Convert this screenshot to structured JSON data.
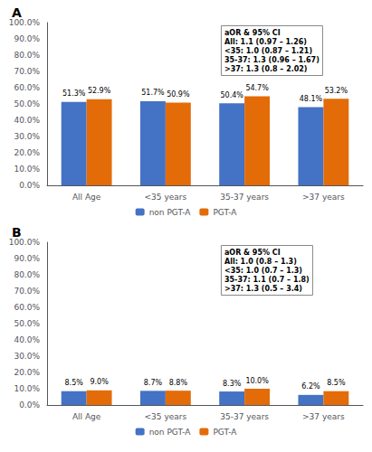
{
  "chart_data": [
    {
      "type": "bar",
      "title": "A",
      "categories": [
        "All Age",
        "<35 years",
        "35-37 years",
        ">37 years"
      ],
      "series": [
        {
          "name": "non PGT-A",
          "color": "#4472C4",
          "values": [
            51.3,
            51.7,
            50.4,
            48.1
          ],
          "value_labels": [
            "51.3%",
            "51.7%",
            "50.4%",
            "48.1%"
          ]
        },
        {
          "name": "PGT-A",
          "color": "#E36C09",
          "values": [
            52.9,
            50.9,
            54.7,
            53.2
          ],
          "value_labels": [
            "52.9%",
            "50.9%",
            "54.7%",
            "53.2%"
          ]
        }
      ],
      "ylim": [
        0,
        100
      ],
      "yticks": [
        {
          "value": 0,
          "label": "0.0%"
        },
        {
          "value": 10,
          "label": "10.0%"
        },
        {
          "value": 20,
          "label": "20.0%"
        },
        {
          "value": 30,
          "label": "30.0%"
        },
        {
          "value": 40,
          "label": "40.0%"
        },
        {
          "value": 50,
          "label": "50.0%"
        },
        {
          "value": 60,
          "label": "60.0%"
        },
        {
          "value": 70,
          "label": "70.0%"
        },
        {
          "value": 80,
          "label": "80.0%"
        },
        {
          "value": 90,
          "label": "90.0%"
        },
        {
          "value": 100,
          "label": "100.0%"
        }
      ],
      "annotation": "aOR & 95% CI\nAll: 1.1 (0.97 – 1.26)\n<35: 1.0 (0.87 – 1.21)\n35-37: 1.3 (0.96 – 1.67)\n>37: 1.3 (0.8 – 2.02)",
      "grid": false,
      "legend": "bottom",
      "data_labels": true
    },
    {
      "type": "bar",
      "title": "B",
      "categories": [
        "All Age",
        "<35 years",
        "35-37 years",
        ">37 years"
      ],
      "series": [
        {
          "name": "non PGT-A",
          "color": "#4472C4",
          "values": [
            8.5,
            8.7,
            8.3,
            6.2
          ],
          "value_labels": [
            "8.5%",
            "8.7%",
            "8.3%",
            "6.2%"
          ]
        },
        {
          "name": "PGT-A",
          "color": "#E36C09",
          "values": [
            9.0,
            8.8,
            10.0,
            8.5
          ],
          "value_labels": [
            "9.0%",
            "8.8%",
            "10.0%",
            "8.5%"
          ]
        }
      ],
      "ylim": [
        0,
        100
      ],
      "yticks": [
        {
          "value": 0,
          "label": "0.0%"
        },
        {
          "value": 10,
          "label": "10.0%"
        },
        {
          "value": 20,
          "label": "20.0%"
        },
        {
          "value": 30,
          "label": "30.0%"
        },
        {
          "value": 40,
          "label": "40.0%"
        },
        {
          "value": 50,
          "label": "50.0%"
        },
        {
          "value": 60,
          "label": "60.0%"
        },
        {
          "value": 70,
          "label": "70.0%"
        },
        {
          "value": 80,
          "label": "80.0%"
        },
        {
          "value": 90,
          "label": "90.0%"
        },
        {
          "value": 100,
          "label": "100.0%"
        }
      ],
      "annotation": "aOR & 95% CI\nAll: 1.0 (0.8 – 1.3)\n<35: 1.0 (0.7 – 1.3)\n35-37: 1.1 (0.7 – 1.8)\n>37: 1.3 (0.5 – 3.4)",
      "grid": false,
      "legend": "bottom",
      "data_labels": true
    }
  ]
}
